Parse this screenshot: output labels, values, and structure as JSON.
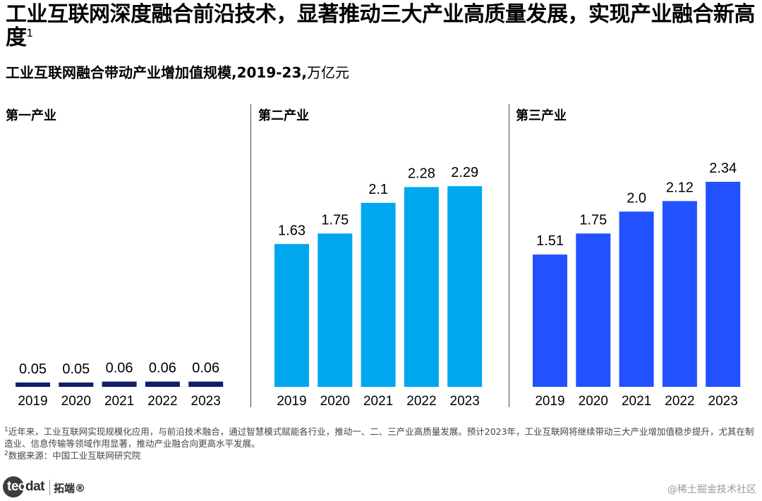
{
  "header": {
    "title": "工业互联网深度融合前沿技术，显著推动三大产业高质量发展，实现产业融合新高度",
    "title_sup": "1",
    "subtitle_main": "工业互联网融合带动产业增加值规模,2019-23,",
    "subtitle_unit": "万亿元"
  },
  "chart_data": [
    {
      "type": "bar",
      "title": "第一产业",
      "categories": [
        "2019",
        "2020",
        "2021",
        "2022",
        "2023"
      ],
      "values": [
        0.05,
        0.05,
        0.06,
        0.06,
        0.06
      ],
      "labels": [
        "0.05",
        "0.05",
        "0.06",
        "0.06",
        "0.06"
      ],
      "color": "#0f1f6b",
      "ylim": [
        0,
        2.34
      ]
    },
    {
      "type": "bar",
      "title": "第二产业",
      "categories": [
        "2019",
        "2020",
        "2021",
        "2022",
        "2023"
      ],
      "values": [
        1.63,
        1.75,
        2.1,
        2.28,
        2.29
      ],
      "labels": [
        "1.63",
        "1.75",
        "2.1",
        "2.28",
        "2.29"
      ],
      "color": "#00a7ef",
      "ylim": [
        0,
        2.34
      ]
    },
    {
      "type": "bar",
      "title": "第三产业",
      "categories": [
        "2019",
        "2020",
        "2021",
        "2022",
        "2023"
      ],
      "values": [
        1.51,
        1.75,
        2.0,
        2.12,
        2.34
      ],
      "labels": [
        "1.51",
        "1.75",
        "2.0",
        "2.12",
        "2.34"
      ],
      "color": "#2251ff",
      "ylim": [
        0,
        2.34
      ]
    }
  ],
  "footnotes": {
    "note1_sup": "1",
    "note1": "近年来，工业互联网实现规模化应用，与前沿技术融合，通过智慧模式赋能各行业，推动一、二、三产业高质量发展。预计2023年，工业互联网将继续带动三大产业增加值稳步提升，尤其在制造业、信息传输等领域作用显著，推动产业融合向更高水平发展。",
    "note2_sup": "2",
    "note2": "数据来源：中国工业互联网研究院"
  },
  "branding": {
    "logo_first": "tec",
    "logo_rest": "dat",
    "logo_cn": "拓端®",
    "watermark": "@稀土掘金技术社区"
  }
}
